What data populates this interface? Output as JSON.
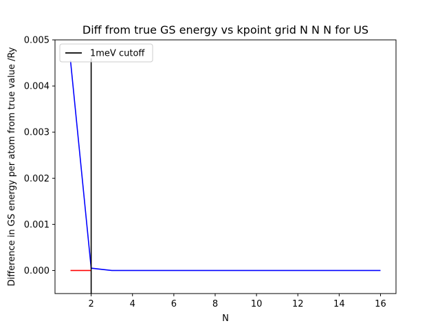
{
  "chart_data": {
    "type": "line",
    "title": "Diff from true GS energy vs kpoint grid N N N for US",
    "xlabel": "N",
    "ylabel": "Difference in GS energy per atom from true value /Ry",
    "xlim": [
      0.25,
      16.75
    ],
    "ylim": [
      -0.0005,
      0.005
    ],
    "xticks": [
      2,
      4,
      6,
      8,
      10,
      12,
      14,
      16
    ],
    "xtick_labels": [
      "2",
      "4",
      "6",
      "8",
      "10",
      "12",
      "14",
      "16"
    ],
    "yticks": [
      0.0,
      0.001,
      0.002,
      0.003,
      0.004,
      0.005
    ],
    "ytick_labels": [
      "0.000",
      "0.001",
      "0.002",
      "0.003",
      "0.004",
      "0.005"
    ],
    "grid": false,
    "legend_position": "top-left",
    "series": [
      {
        "color": "#0000ff",
        "x": [
          1,
          2,
          3,
          4,
          5,
          6,
          7,
          8,
          9,
          10,
          11,
          12,
          13,
          14,
          15,
          16
        ],
        "y": [
          0.00455,
          5e-05,
          0.0,
          0.0,
          0.0,
          0.0,
          0.0,
          0.0,
          0.0,
          0.0,
          0.0,
          0.0,
          0.0,
          0.0,
          0.0,
          0.0
        ]
      },
      {
        "color": "#ff0000",
        "x": [
          1,
          2
        ],
        "y": [
          0.0,
          0.0
        ]
      }
    ],
    "vline": {
      "name": "1meV cutoff",
      "color": "#000000",
      "x": 2,
      "y_range": [
        -0.0005,
        0.0046
      ]
    }
  }
}
